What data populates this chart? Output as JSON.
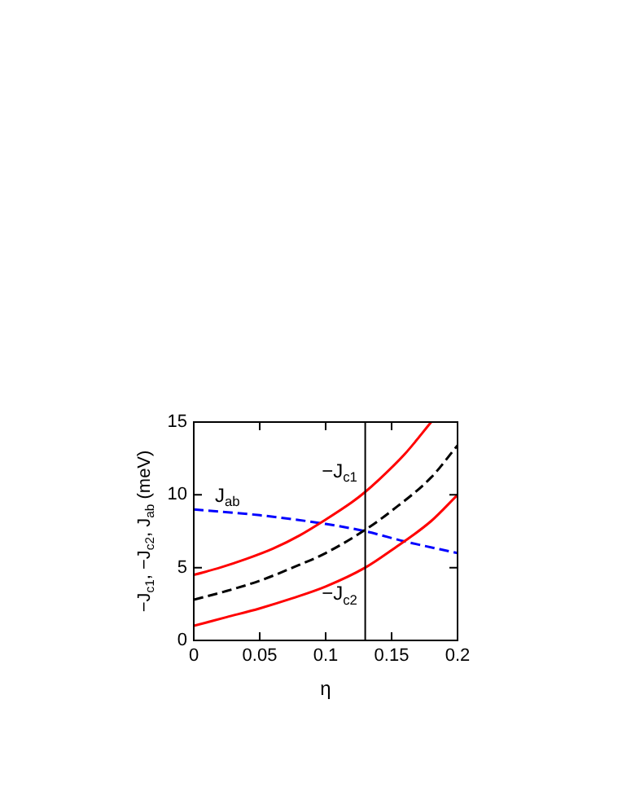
{
  "chart_data": {
    "type": "line",
    "xlabel": "η",
    "ylabel": "−J$_{c1}$, −J$_{c2}$, J$_{ab}$ (meV)",
    "xlim": [
      0,
      0.2
    ],
    "xticks": [
      0,
      0.05,
      0.1,
      0.15,
      0.2
    ],
    "ylim": [
      0,
      15
    ],
    "yticks": [
      0,
      5,
      10,
      15
    ],
    "grid": false,
    "legend": false,
    "marker": "none",
    "series": [
      {
        "color": "#ff0000",
        "line_style": "solid",
        "x": [
          0,
          0.02,
          0.04,
          0.06,
          0.08,
          0.1,
          0.12,
          0.13,
          0.14,
          0.16,
          0.18
        ],
        "values": [
          4.5,
          5.0,
          5.6,
          6.3,
          7.2,
          8.3,
          9.5,
          10.2,
          11.0,
          12.8,
          15.0
        ]
      },
      {
        "color": "#000000",
        "line_style": "dashed",
        "x": [
          0,
          0.025,
          0.05,
          0.075,
          0.1,
          0.13,
          0.15,
          0.18,
          0.2
        ],
        "values": [
          2.8,
          3.4,
          4.1,
          5.0,
          6.0,
          7.6,
          8.9,
          11.2,
          13.4
        ]
      },
      {
        "color": "#ff0000",
        "line_style": "solid",
        "x": [
          0,
          0.025,
          0.05,
          0.075,
          0.1,
          0.13,
          0.15,
          0.18,
          0.2
        ],
        "values": [
          1.0,
          1.6,
          2.2,
          2.9,
          3.7,
          5.0,
          6.2,
          8.2,
          10.0
        ]
      },
      {
        "color": "#0000ff",
        "line_style": "dashed",
        "x": [
          0,
          0.05,
          0.1,
          0.13,
          0.16,
          0.2
        ],
        "values": [
          9.0,
          8.6,
          8.0,
          7.5,
          6.8,
          6.0
        ]
      }
    ],
    "ref_lines": [
      {
        "axis": "x",
        "value": 0.13,
        "color": "#000000",
        "line_style": "solid"
      }
    ],
    "annotations": [
      "−J$_{c1}$",
      "J$_{ab}$",
      "−J$_{c2}$"
    ]
  }
}
